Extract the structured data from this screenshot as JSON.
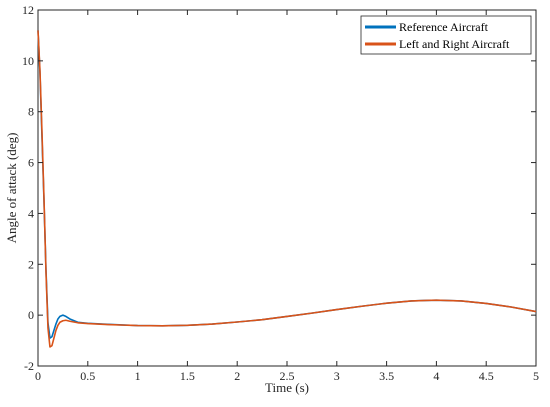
{
  "chart_data": {
    "type": "line",
    "xlabel": "Time (s)",
    "ylabel": "Angle of attack (deg)",
    "xlim": [
      0,
      5
    ],
    "ylim": [
      -2,
      12
    ],
    "xticks": [
      0,
      0.5,
      1,
      1.5,
      2,
      2.5,
      3,
      3.5,
      4,
      4.5,
      5
    ],
    "xtick_labels": [
      "0",
      "0.5",
      "1",
      "1.5",
      "2",
      "2.5",
      "3",
      "3.5",
      "4",
      "4.5",
      "5"
    ],
    "yticks": [
      -2,
      0,
      2,
      4,
      6,
      8,
      10,
      12
    ],
    "ytick_labels": [
      "-2",
      "0",
      "2",
      "4",
      "6",
      "8",
      "10",
      "12"
    ],
    "grid": false,
    "legend_position": "top-right",
    "series": [
      {
        "name": "Reference Aircraft",
        "color": "#0072BD",
        "points": [
          [
            0,
            11.2
          ],
          [
            0.02,
            9.5
          ],
          [
            0.04,
            7.0
          ],
          [
            0.06,
            4.5
          ],
          [
            0.08,
            1.8
          ],
          [
            0.1,
            -0.3
          ],
          [
            0.12,
            -0.9
          ],
          [
            0.14,
            -0.85
          ],
          [
            0.16,
            -0.6
          ],
          [
            0.18,
            -0.35
          ],
          [
            0.2,
            -0.15
          ],
          [
            0.22,
            -0.05
          ],
          [
            0.25,
            0.0
          ],
          [
            0.28,
            -0.05
          ],
          [
            0.32,
            -0.15
          ],
          [
            0.4,
            -0.28
          ],
          [
            0.5,
            -0.32
          ],
          [
            0.7,
            -0.36
          ],
          [
            1.0,
            -0.41
          ],
          [
            1.25,
            -0.42
          ],
          [
            1.5,
            -0.4
          ],
          [
            1.75,
            -0.35
          ],
          [
            2.0,
            -0.27
          ],
          [
            2.25,
            -0.18
          ],
          [
            2.5,
            -0.05
          ],
          [
            2.75,
            0.08
          ],
          [
            3.0,
            0.22
          ],
          [
            3.25,
            0.35
          ],
          [
            3.5,
            0.47
          ],
          [
            3.75,
            0.56
          ],
          [
            3.9,
            0.58
          ],
          [
            4.0,
            0.59
          ],
          [
            4.25,
            0.56
          ],
          [
            4.5,
            0.46
          ],
          [
            4.75,
            0.32
          ],
          [
            5.0,
            0.14
          ]
        ]
      },
      {
        "name": "Left and Right Aircraft",
        "color": "#D95319",
        "points": [
          [
            0,
            11.2
          ],
          [
            0.02,
            9.6
          ],
          [
            0.04,
            7.2
          ],
          [
            0.06,
            4.6
          ],
          [
            0.08,
            1.7
          ],
          [
            0.1,
            -0.5
          ],
          [
            0.12,
            -1.25
          ],
          [
            0.14,
            -1.2
          ],
          [
            0.16,
            -0.9
          ],
          [
            0.18,
            -0.6
          ],
          [
            0.2,
            -0.4
          ],
          [
            0.22,
            -0.28
          ],
          [
            0.25,
            -0.22
          ],
          [
            0.28,
            -0.2
          ],
          [
            0.32,
            -0.24
          ],
          [
            0.4,
            -0.3
          ],
          [
            0.5,
            -0.33
          ],
          [
            0.7,
            -0.37
          ],
          [
            1.0,
            -0.41
          ],
          [
            1.25,
            -0.42
          ],
          [
            1.5,
            -0.4
          ],
          [
            1.75,
            -0.35
          ],
          [
            2.0,
            -0.27
          ],
          [
            2.25,
            -0.18
          ],
          [
            2.5,
            -0.05
          ],
          [
            2.75,
            0.08
          ],
          [
            3.0,
            0.22
          ],
          [
            3.25,
            0.35
          ],
          [
            3.5,
            0.47
          ],
          [
            3.75,
            0.56
          ],
          [
            3.9,
            0.58
          ],
          [
            4.0,
            0.59
          ],
          [
            4.25,
            0.56
          ],
          [
            4.5,
            0.46
          ],
          [
            4.75,
            0.32
          ],
          [
            5.0,
            0.14
          ]
        ]
      }
    ]
  }
}
